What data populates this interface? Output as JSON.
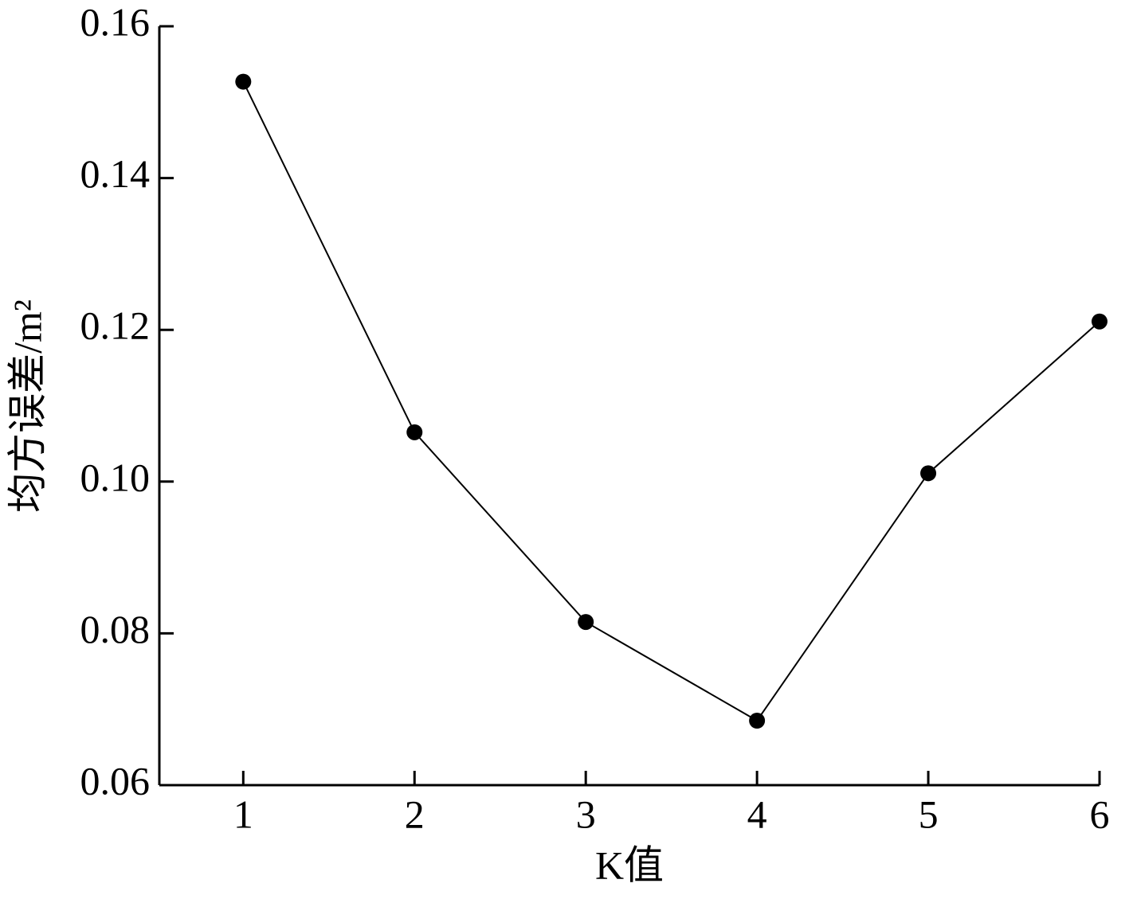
{
  "chart_data": {
    "type": "line",
    "x_label": "K值",
    "y_label": "均方误差/m²",
    "x": [
      1,
      2,
      3,
      4,
      5,
      6
    ],
    "series": [
      {
        "name": "均方误差",
        "color": "#000000",
        "values": [
          0.1527,
          0.1065,
          0.0815,
          0.0685,
          0.1011,
          0.1211
        ]
      }
    ],
    "xlim": [
      0.51,
      6
    ],
    "xticks": [
      1,
      2,
      3,
      4,
      5,
      6
    ],
    "ylim": [
      0.06,
      0.16
    ],
    "yticks": [
      0.06,
      0.08,
      {
        "value": 0.1,
        "label": "0.10"
      },
      0.12,
      0.14,
      0.16
    ],
    "grid": false
  }
}
